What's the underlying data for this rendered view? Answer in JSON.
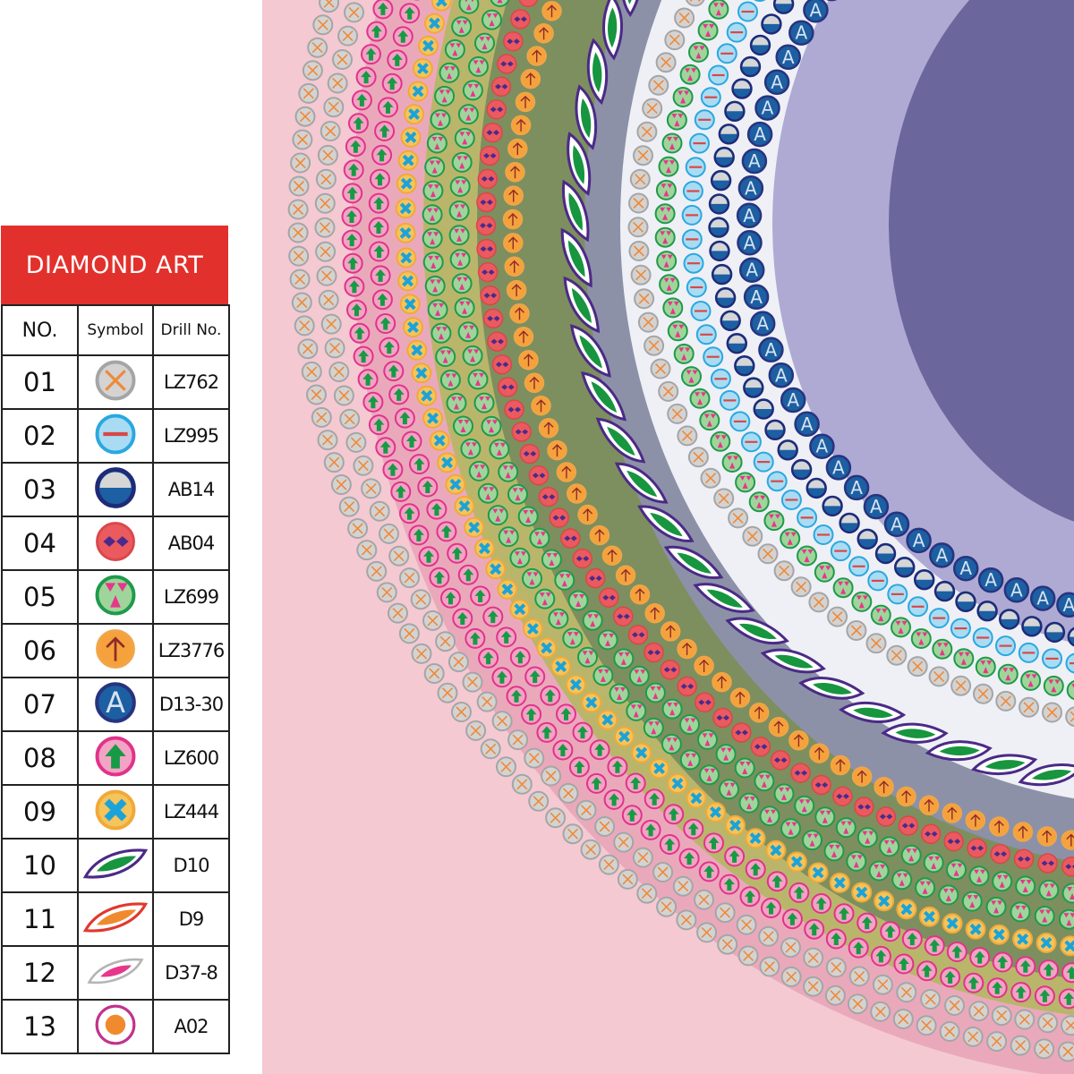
{
  "legend": {
    "title": "DIAMOND ART",
    "headers": {
      "no": "NO.",
      "symbol": "Symbol",
      "drill": "Drill No."
    },
    "rows": [
      {
        "no": "01",
        "symbol": "gray-circle-orange-x",
        "drill": "LZ762"
      },
      {
        "no": "02",
        "symbol": "lightblue-circle-red-minus",
        "drill": "LZ995"
      },
      {
        "no": "03",
        "symbol": "blue-half-circle",
        "drill": "AB14"
      },
      {
        "no": "04",
        "symbol": "red-circle-purple-diamonds",
        "drill": "AB04"
      },
      {
        "no": "05",
        "symbol": "green-circle-pink-trefoil",
        "drill": "LZ699"
      },
      {
        "no": "06",
        "symbol": "orange-circle-arrow-up",
        "drill": "LZ3776"
      },
      {
        "no": "07",
        "symbol": "blue-circle-letter-a",
        "drill": "D13-30"
      },
      {
        "no": "08",
        "symbol": "pink-circle-green-arrow",
        "drill": "LZ600"
      },
      {
        "no": "09",
        "symbol": "yellow-circle-blue-x",
        "drill": "LZ444"
      },
      {
        "no": "10",
        "symbol": "purple-outline-green-leaf",
        "drill": "D10"
      },
      {
        "no": "11",
        "symbol": "red-outline-orange-leaf",
        "drill": "D9"
      },
      {
        "no": "12",
        "symbol": "gray-outline-pink-leaf",
        "drill": "D37-8"
      },
      {
        "no": "13",
        "symbol": "ring-orange-dot",
        "drill": "A02"
      }
    ],
    "header_color": "#e2312d"
  },
  "pattern": {
    "symbol_letter": "A",
    "rows_outer_to_inner": [
      1,
      1,
      8,
      8,
      9,
      5,
      5,
      4,
      6,
      10,
      1,
      5,
      2,
      3,
      7
    ],
    "colors": {
      "pink_bg": "#f4c9d2",
      "olive_bg": "#b9b66b",
      "green_bg": "#7d8f5e",
      "white_bg": "#eef0f6",
      "lavender_bg": "#aeaad4"
    }
  }
}
